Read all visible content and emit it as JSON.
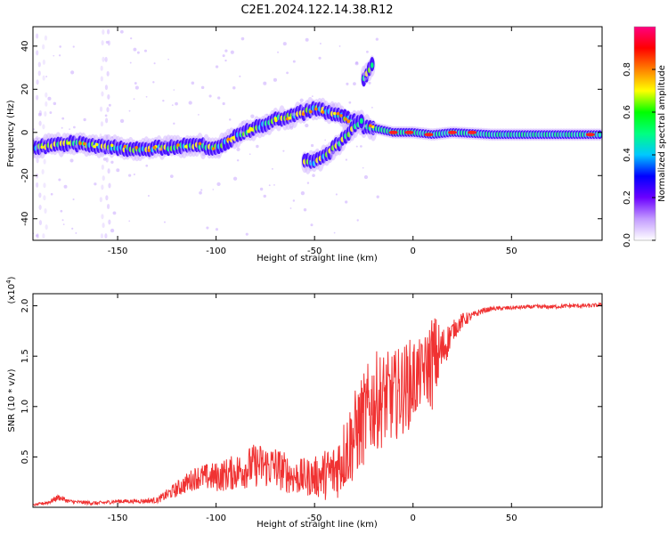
{
  "title": "C2E1.2024.122.14.38.R12",
  "chart_data": [
    {
      "type": "heatmap",
      "panel": "spectrogram",
      "xlabel": "Height of straight line (km)",
      "ylabel": "Frequency (Hz)",
      "xlim": [
        -193,
        96
      ],
      "ylim": [
        -50,
        49
      ],
      "x_ticks": [
        -150,
        -100,
        -50,
        0,
        50
      ],
      "y_ticks": [
        -40,
        -20,
        0,
        20,
        40
      ],
      "grid": false,
      "colorbar": {
        "label": "Normalized spectral amplitude",
        "range": [
          0.0,
          1.0
        ],
        "ticks": [
          "0.0",
          "0.2",
          "0.4",
          "0.6",
          "0.8"
        ],
        "colormap": [
          "#ffffff",
          "#c39bff",
          "#6b00ff",
          "#0000ff",
          "#00c8ff",
          "#00ff80",
          "#00ff00",
          "#ffff00",
          "#ff8000",
          "#ff0000",
          "#ff0080"
        ]
      },
      "ridge": [
        {
          "x": -193,
          "f": -7
        },
        {
          "x": -175,
          "f": -5
        },
        {
          "x": -160,
          "f": -6
        },
        {
          "x": -140,
          "f": -8
        },
        {
          "x": -125,
          "f": -7
        },
        {
          "x": -110,
          "f": -6
        },
        {
          "x": -100,
          "f": -7
        },
        {
          "x": -90,
          "f": -2
        },
        {
          "x": -80,
          "f": 2
        },
        {
          "x": -70,
          "f": 6
        },
        {
          "x": -60,
          "f": 8
        },
        {
          "x": -50,
          "f": 11
        },
        {
          "x": -45,
          "f": 10
        },
        {
          "x": -35,
          "f": 7
        },
        {
          "x": -25,
          "f": 3
        },
        {
          "x": -10,
          "f": 0
        },
        {
          "x": 0,
          "f": 0
        },
        {
          "x": 10,
          "f": -1
        },
        {
          "x": 20,
          "f": 0
        },
        {
          "x": 40,
          "f": -1
        },
        {
          "x": 60,
          "f": -1
        },
        {
          "x": 80,
          "f": -1
        },
        {
          "x": 96,
          "f": -1
        }
      ],
      "branch": [
        {
          "x": -55,
          "f": -13
        },
        {
          "x": -50,
          "f": -14
        },
        {
          "x": -45,
          "f": -11
        },
        {
          "x": -40,
          "f": -7
        },
        {
          "x": -35,
          "f": -3
        },
        {
          "x": -30,
          "f": 2
        },
        {
          "x": -25,
          "f": 7
        }
      ],
      "upper_branch": [
        {
          "x": -25,
          "f": 25
        },
        {
          "x": -20,
          "f": 32
        }
      ]
    },
    {
      "type": "line",
      "panel": "snr",
      "xlabel": "Height of straight line (km)",
      "ylabel": "SNR (10 * v/v)",
      "multiplier_label": "(x10",
      "multiplier_exp": "4",
      "xlim": [
        -193,
        96
      ],
      "ylim": [
        0,
        2.12
      ],
      "x_ticks": [
        -150,
        -100,
        -50,
        0,
        50
      ],
      "y_ticks": [
        "0.5",
        "1.0",
        "1.5",
        "2.0"
      ],
      "grid": false,
      "series": [
        {
          "color": "#f03232",
          "x": [
            -193,
            -185,
            -180,
            -175,
            -170,
            -160,
            -150,
            -140,
            -130,
            -120,
            -110,
            -100,
            -90,
            -80,
            -70,
            -60,
            -50,
            -40,
            -30,
            -20,
            -10,
            0,
            5,
            10,
            15,
            20,
            25,
            30,
            35,
            40,
            50,
            60,
            70,
            80,
            90,
            96
          ],
          "y": [
            0.02,
            0.05,
            0.1,
            0.06,
            0.05,
            0.04,
            0.06,
            0.06,
            0.07,
            0.18,
            0.3,
            0.3,
            0.35,
            0.42,
            0.4,
            0.3,
            0.3,
            0.35,
            0.7,
            1.05,
            1.1,
            1.25,
            1.35,
            1.45,
            1.55,
            1.75,
            1.85,
            1.9,
            1.95,
            1.97,
            1.98,
            1.99,
            1.99,
            2.0,
            2.0,
            2.01
          ],
          "noise": [
            0.01,
            0.02,
            0.03,
            0.02,
            0.02,
            0.02,
            0.02,
            0.02,
            0.03,
            0.08,
            0.12,
            0.15,
            0.18,
            0.22,
            0.22,
            0.18,
            0.2,
            0.3,
            0.45,
            0.5,
            0.45,
            0.45,
            0.3,
            0.5,
            0.25,
            0.1,
            0.08,
            0.04,
            0.03,
            0.02,
            0.02,
            0.02,
            0.02,
            0.02,
            0.02,
            0.02
          ]
        }
      ]
    }
  ]
}
